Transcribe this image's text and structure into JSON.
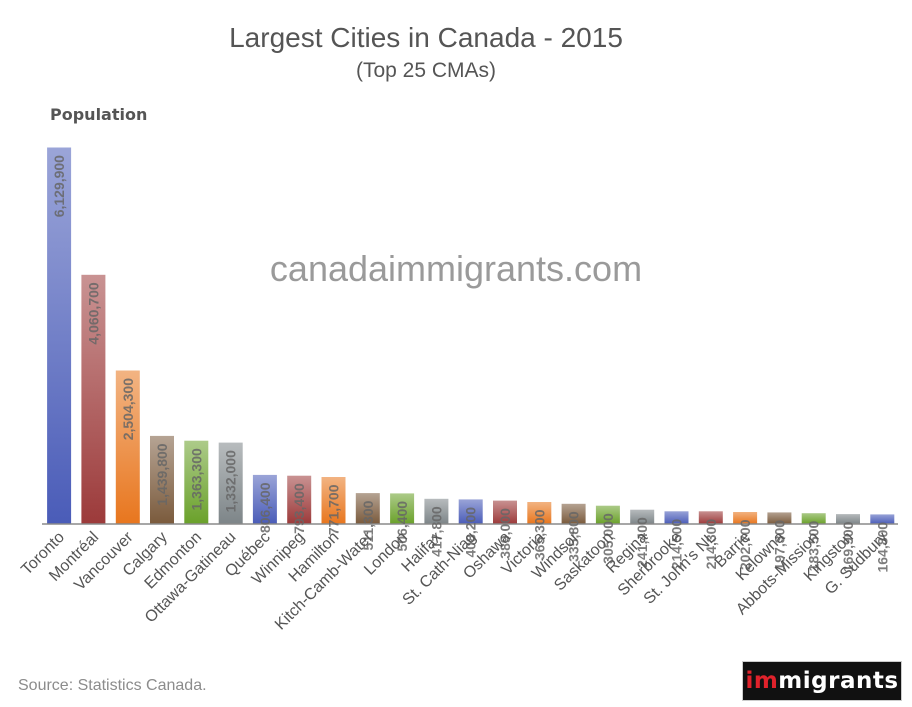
{
  "chart_data": {
    "type": "bar",
    "title": "Largest Cities in Canada - 2015",
    "subtitle": "(Top 25 CMAs)",
    "ylabel": "Population",
    "xlabel": "",
    "ylim": [
      0,
      6200000
    ],
    "grid": false,
    "legend": "none",
    "categories": [
      "Toronto",
      "Montréal",
      "Vancouver",
      "Calgary",
      "Edmonton",
      "Ottawa-Gatineau",
      "Québec",
      "Winnipeg",
      "Hamilton",
      "Kitch-Camb-Water",
      "London",
      "Halifax",
      "St. Cath-Niag",
      "Oshawa",
      "Victoria",
      "Windsor",
      "Saskatoon",
      "Regina",
      "Sherbrooke",
      "St. John's NL",
      "Barrie",
      "Kelowna",
      "Abbots-Mission",
      "Kingston",
      "G. Sudbury"
    ],
    "values": [
      6129900,
      4060700,
      2504300,
      1439800,
      1363300,
      1332000,
      806400,
      793400,
      771700,
      511300,
      506400,
      417800,
      408200,
      389000,
      365300,
      335800,
      305000,
      241400,
      214500,
      214300,
      202700,
      197300,
      183500,
      169900,
      164800
    ],
    "value_labels": [
      "6,129,900",
      "4,060,700",
      "2,504,300",
      "1,439,800",
      "1,363,300",
      "1,332,000",
      "806,400",
      "793,400",
      "771,700",
      "511,300",
      "506,400",
      "417,800",
      "408,200",
      "389,000",
      "365,300",
      "335,800",
      "305,000",
      "241,400",
      "214,500",
      "214,300",
      "202,700",
      "197,300",
      "183,500",
      "169,900",
      "164,800"
    ],
    "colors": [
      "#4a5cb8",
      "#9c3a3a",
      "#e8761e",
      "#7a5a3c",
      "#6aa12a",
      "#7d8588",
      "#4a5cb8",
      "#9c3a3a",
      "#e8761e",
      "#7a5a3c",
      "#6aa12a",
      "#7d8588",
      "#4a5cb8",
      "#9c3a3a",
      "#e8761e",
      "#7a5a3c",
      "#6aa12a",
      "#7d8588",
      "#4a5cb8",
      "#9c3a3a",
      "#e8761e",
      "#7a5a3c",
      "#6aa12a",
      "#7d8588",
      "#4a5cb8"
    ]
  },
  "watermark": "canadaimmigrants.com",
  "source": "Source: Statistics Canada.",
  "logo": {
    "prefix": "im",
    "rest": "migrants",
    "accent_color": "#e0222b"
  }
}
